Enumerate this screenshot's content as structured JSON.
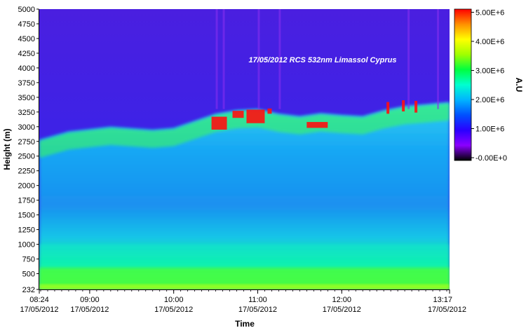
{
  "chart_data": {
    "type": "heatmap",
    "title": "17/05/2012 RCS 532nm Limassol Cyprus",
    "xlabel": "Time",
    "ylabel": "Height (m)",
    "colorbar_label": "A.U",
    "x_ticks": [
      {
        "time": "08:24",
        "date": "17/05/2012"
      },
      {
        "time": "09:00",
        "date": "17/05/2012"
      },
      {
        "time": "10:00",
        "date": "17/05/2012"
      },
      {
        "time": "11:00",
        "date": "17/05/2012"
      },
      {
        "time": "12:00",
        "date": "17/05/2012"
      },
      {
        "time": "13:17",
        "date": "17/05/2012"
      }
    ],
    "xlim": [
      "08:24",
      "13:17"
    ],
    "y_ticks": [
      232,
      500,
      750,
      1000,
      1250,
      1500,
      1750,
      2000,
      2250,
      2500,
      2750,
      3000,
      3250,
      3500,
      3750,
      4000,
      4250,
      4500,
      4750,
      5000
    ],
    "ylim": [
      232,
      5000
    ],
    "colorbar_ticks": [
      "-0.00E+0",
      "1.00E+6",
      "2.00E+6",
      "3.00E+6",
      "4.00E+6",
      "5.00E+6"
    ],
    "colorbar_range": [
      0,
      5000000
    ],
    "colormap": [
      "#000000",
      "#8b00ff",
      "#2a00ff",
      "#0050ff",
      "#00b4ff",
      "#00ffd0",
      "#00ff40",
      "#a0ff00",
      "#ffff00",
      "#ff9000",
      "#ff0000"
    ],
    "layer_top_height": [
      {
        "time": "08:24",
        "height": 2780
      },
      {
        "time": "08:45",
        "height": 2920
      },
      {
        "time": "09:15",
        "height": 3000
      },
      {
        "time": "09:45",
        "height": 2950
      },
      {
        "time": "10:00",
        "height": 2980
      },
      {
        "time": "10:15",
        "height": 3100
      },
      {
        "time": "10:30",
        "height": 3220
      },
      {
        "time": "10:45",
        "height": 3280
      },
      {
        "time": "11:00",
        "height": 3300
      },
      {
        "time": "11:15",
        "height": 3220
      },
      {
        "time": "11:30",
        "height": 3180
      },
      {
        "time": "11:45",
        "height": 3230
      },
      {
        "time": "12:00",
        "height": 3200
      },
      {
        "time": "12:15",
        "height": 3180
      },
      {
        "time": "12:30",
        "height": 3280
      },
      {
        "time": "12:45",
        "height": 3350
      },
      {
        "time": "13:00",
        "height": 3380
      },
      {
        "time": "13:17",
        "height": 3420
      }
    ]
  }
}
